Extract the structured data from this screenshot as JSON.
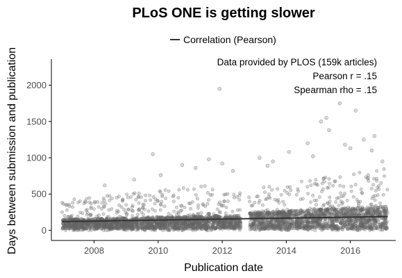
{
  "chart_data": {
    "type": "scatter",
    "title": "PLoS ONE is getting slower",
    "xlabel": "Publication date",
    "ylabel": "Days between submission and publication",
    "legend": {
      "position": "top",
      "entries": [
        "Correlation (Pearson)"
      ]
    },
    "annotations": [
      "Data provided by PLOS (159k articles)",
      "Pearson r = .15",
      "Spearman rho = .15"
    ],
    "x_ticks": [
      "2008",
      "2010",
      "2012",
      "2014",
      "2016"
    ],
    "y_ticks": [
      "0",
      "500",
      "1000",
      "1500",
      "2000"
    ],
    "xlim": [
      "2006-09",
      "2017-06"
    ],
    "ylim": [
      -140,
      2360
    ],
    "grid": false,
    "point_color": "#666666",
    "line_color": "#333333",
    "trend_line": {
      "x": [
        "2007-01",
        "2017-03"
      ],
      "y": [
        120,
        190
      ]
    },
    "scatter_density": [
      {
        "period": [
          "2007-01",
          "2012-08"
        ],
        "core_range": [
          60,
          180
        ],
        "spread_range": [
          0,
          600
        ]
      },
      {
        "period": [
          "2012-11",
          "2017-03"
        ],
        "core_range": [
          50,
          290
        ],
        "spread_range": [
          0,
          800
        ]
      }
    ],
    "outliers": [
      {
        "x": "2011-12",
        "y": 1950
      },
      {
        "x": "2015-09",
        "y": 1750
      },
      {
        "x": "2016-03",
        "y": 1650
      },
      {
        "x": "2015-04",
        "y": 1550
      },
      {
        "x": "2015-02",
        "y": 1500
      },
      {
        "x": "2015-05",
        "y": 1380
      },
      {
        "x": "2016-10",
        "y": 1300
      },
      {
        "x": "2016-06",
        "y": 1250
      },
      {
        "x": "2014-09",
        "y": 1200
      },
      {
        "x": "2015-11",
        "y": 1180
      },
      {
        "x": "2016-01",
        "y": 1130
      },
      {
        "x": "2009-11",
        "y": 1050
      },
      {
        "x": "2014-02",
        "y": 1080
      },
      {
        "x": "2011-08",
        "y": 980
      },
      {
        "x": "2013-03",
        "y": 1000
      },
      {
        "x": "2012-01",
        "y": 920
      },
      {
        "x": "2010-10",
        "y": 900
      },
      {
        "x": "2013-08",
        "y": 950
      },
      {
        "x": "2014-11",
        "y": 1020
      },
      {
        "x": "2016-09",
        "y": 1100
      },
      {
        "x": "2011-03",
        "y": 860
      },
      {
        "x": "2008-05",
        "y": 620
      },
      {
        "x": "2009-04",
        "y": 700
      },
      {
        "x": "2010-02",
        "y": 760
      },
      {
        "x": "2012-05",
        "y": 820
      },
      {
        "x": "2013-06",
        "y": 890
      },
      {
        "x": "2017-01",
        "y": 950
      }
    ]
  }
}
